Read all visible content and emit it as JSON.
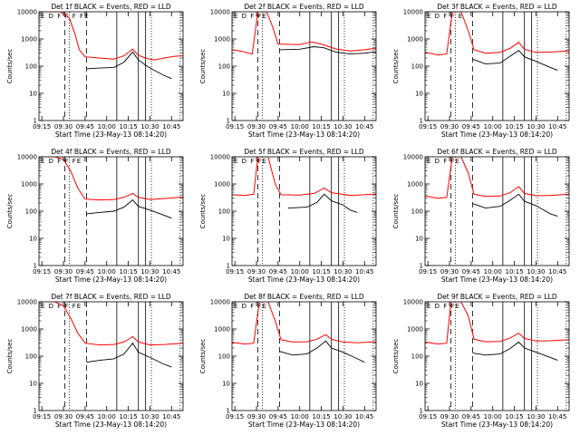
{
  "chart_data": {
    "type": "line",
    "layout": "3x3 grid",
    "xlabel": "Start Time (23-May-13 08:14:20)",
    "ylabel": "Counts/sec",
    "x_ticks": [
      "09:15",
      "09:30",
      "09:45",
      "10:00",
      "10:15",
      "10:30",
      "10:45"
    ],
    "x_range": [
      "09:13",
      "10:53"
    ],
    "y_scale": "log",
    "y_ticks": [
      "1",
      "10",
      "100",
      "1000",
      "10000"
    ],
    "ylim": [
      1,
      10000
    ],
    "grid": false,
    "colors": {
      "events": "#000000",
      "lld": "#ff0000"
    },
    "markers": [
      {
        "label": "D",
        "time": "09:31",
        "style": "dashed"
      },
      {
        "label": "",
        "time": "09:34",
        "style": "dotted"
      },
      {
        "label": "",
        "time": "09:46",
        "style": "dashed"
      },
      {
        "label": "",
        "time": "10:07",
        "style": "solid"
      },
      {
        "label": "",
        "time": "10:22",
        "style": "solid"
      },
      {
        "label": "",
        "time": "10:27",
        "style": "solid"
      },
      {
        "label": "",
        "time": "10:31",
        "style": "dotted"
      },
      {
        "label": "",
        "time": "10:51",
        "style": "dotted"
      }
    ],
    "panels": [
      {
        "title": "Det 1f BLACK = Events, RED = LLD",
        "flags": "E D F F F FE",
        "lld": [
          [
            "09:13",
            10000
          ],
          [
            "09:22",
            10000
          ],
          [
            "09:28",
            10000
          ],
          [
            "09:34",
            6000
          ],
          [
            "09:38",
            1500
          ],
          [
            "09:41",
            400
          ],
          [
            "09:45",
            220
          ],
          [
            "09:55",
            200
          ],
          [
            "10:05",
            180
          ],
          [
            "10:12",
            240
          ],
          [
            "10:18",
            430
          ],
          [
            "10:22",
            250
          ],
          [
            "10:28",
            190
          ],
          [
            "10:33",
            170
          ],
          [
            "10:40",
            200
          ],
          [
            "10:47",
            230
          ],
          [
            "10:53",
            240
          ]
        ],
        "events": [
          [
            "09:46",
            80
          ],
          [
            "09:55",
            85
          ],
          [
            "10:05",
            90
          ],
          [
            "10:12",
            140
          ],
          [
            "10:18",
            330
          ],
          [
            "10:22",
            170
          ],
          [
            "10:28",
            100
          ],
          [
            "10:33",
            70
          ],
          [
            "10:40",
            45
          ],
          [
            "10:45",
            35
          ]
        ]
      },
      {
        "title": "Det 2f BLACK = Events, RED = LLD",
        "flags": "E D F FE",
        "lld": [
          [
            "09:13",
            400
          ],
          [
            "09:20",
            350
          ],
          [
            "09:27",
            280
          ],
          [
            "09:31",
            10000
          ],
          [
            "09:37",
            10000
          ],
          [
            "09:41",
            3000
          ],
          [
            "09:45",
            650
          ],
          [
            "10:00",
            620
          ],
          [
            "10:08",
            780
          ],
          [
            "10:15",
            650
          ],
          [
            "10:25",
            430
          ],
          [
            "10:35",
            360
          ],
          [
            "10:45",
            400
          ],
          [
            "10:53",
            460
          ]
        ],
        "events": [
          [
            "09:46",
            400
          ],
          [
            "10:00",
            420
          ],
          [
            "10:10",
            520
          ],
          [
            "10:17",
            470
          ],
          [
            "10:25",
            330
          ],
          [
            "10:35",
            280
          ],
          [
            "10:45",
            300
          ],
          [
            "10:53",
            340
          ]
        ]
      },
      {
        "title": "Det 3f BLACK = Events, RED = LLD",
        "flags": "E D F F E",
        "lld": [
          [
            "09:13",
            320
          ],
          [
            "09:22",
            260
          ],
          [
            "09:28",
            280
          ],
          [
            "09:32",
            10000
          ],
          [
            "09:38",
            10000
          ],
          [
            "09:43",
            2000
          ],
          [
            "09:47",
            400
          ],
          [
            "09:55",
            300
          ],
          [
            "10:05",
            320
          ],
          [
            "10:12",
            450
          ],
          [
            "10:18",
            750
          ],
          [
            "10:22",
            420
          ],
          [
            "10:30",
            320
          ],
          [
            "10:40",
            330
          ],
          [
            "10:53",
            360
          ]
        ],
        "events": [
          [
            "09:46",
            180
          ],
          [
            "09:55",
            120
          ],
          [
            "10:05",
            130
          ],
          [
            "10:12",
            230
          ],
          [
            "10:18",
            380
          ],
          [
            "10:22",
            220
          ],
          [
            "10:30",
            150
          ],
          [
            "10:40",
            90
          ],
          [
            "10:45",
            70
          ]
        ]
      },
      {
        "title": "Det 4f BLACK = Events, RED = LLD",
        "flags": "E D F F FE",
        "lld": [
          [
            "09:13",
            10000
          ],
          [
            "09:24",
            10000
          ],
          [
            "09:30",
            8000
          ],
          [
            "09:35",
            3000
          ],
          [
            "09:40",
            700
          ],
          [
            "09:45",
            280
          ],
          [
            "09:55",
            260
          ],
          [
            "10:05",
            270
          ],
          [
            "10:12",
            320
          ],
          [
            "10:18",
            450
          ],
          [
            "10:22",
            320
          ],
          [
            "10:30",
            270
          ],
          [
            "10:40",
            290
          ],
          [
            "10:53",
            330
          ]
        ],
        "events": [
          [
            "09:46",
            80
          ],
          [
            "09:55",
            90
          ],
          [
            "10:05",
            100
          ],
          [
            "10:12",
            140
          ],
          [
            "10:18",
            260
          ],
          [
            "10:22",
            150
          ],
          [
            "10:30",
            110
          ],
          [
            "10:40",
            70
          ],
          [
            "10:45",
            55
          ]
        ]
      },
      {
        "title": "Det 5f BLACK = Events, RED = LLD",
        "flags": "E D F FE",
        "lld": [
          [
            "09:13",
            400
          ],
          [
            "09:22",
            380
          ],
          [
            "09:28",
            420
          ],
          [
            "09:31",
            10000
          ],
          [
            "09:38",
            10000
          ],
          [
            "09:43",
            1000
          ],
          [
            "09:47",
            400
          ],
          [
            "10:00",
            390
          ],
          [
            "10:10",
            450
          ],
          [
            "10:17",
            700
          ],
          [
            "10:22",
            480
          ],
          [
            "10:35",
            380
          ],
          [
            "10:45",
            400
          ],
          [
            "10:53",
            430
          ]
        ],
        "events": [
          [
            "09:52",
            130
          ],
          [
            "10:05",
            140
          ],
          [
            "10:12",
            210
          ],
          [
            "10:17",
            420
          ],
          [
            "10:22",
            240
          ],
          [
            "10:30",
            170
          ],
          [
            "10:35",
            110
          ],
          [
            "10:40",
            90
          ]
        ]
      },
      {
        "title": "Det 6f BLACK = Events, RED = LLD",
        "flags": "E D F FE",
        "lld": [
          [
            "09:13",
            360
          ],
          [
            "09:22",
            300
          ],
          [
            "09:28",
            320
          ],
          [
            "09:32",
            10000
          ],
          [
            "09:38",
            10000
          ],
          [
            "09:43",
            2500
          ],
          [
            "09:47",
            420
          ],
          [
            "09:55",
            350
          ],
          [
            "10:05",
            360
          ],
          [
            "10:12",
            480
          ],
          [
            "10:18",
            800
          ],
          [
            "10:22",
            450
          ],
          [
            "10:30",
            370
          ],
          [
            "10:40",
            380
          ],
          [
            "10:53",
            420
          ]
        ],
        "events": [
          [
            "09:46",
            190
          ],
          [
            "09:55",
            130
          ],
          [
            "10:05",
            150
          ],
          [
            "10:12",
            250
          ],
          [
            "10:18",
            420
          ],
          [
            "10:22",
            230
          ],
          [
            "10:30",
            160
          ],
          [
            "10:40",
            80
          ],
          [
            "10:45",
            65
          ]
        ]
      },
      {
        "title": "Det 7f BLACK = Events, RED = LLD",
        "flags": "E D F F FE",
        "lld": [
          [
            "09:13",
            10000
          ],
          [
            "09:24",
            10000
          ],
          [
            "09:30",
            7000
          ],
          [
            "09:35",
            2500
          ],
          [
            "09:40",
            700
          ],
          [
            "09:45",
            300
          ],
          [
            "09:55",
            260
          ],
          [
            "10:05",
            270
          ],
          [
            "10:12",
            330
          ],
          [
            "10:18",
            520
          ],
          [
            "10:22",
            330
          ],
          [
            "10:30",
            260
          ],
          [
            "10:40",
            270
          ],
          [
            "10:53",
            300
          ]
        ],
        "events": [
          [
            "09:46",
            60
          ],
          [
            "09:55",
            70
          ],
          [
            "10:05",
            80
          ],
          [
            "10:12",
            120
          ],
          [
            "10:18",
            300
          ],
          [
            "10:22",
            140
          ],
          [
            "10:30",
            90
          ],
          [
            "10:40",
            50
          ],
          [
            "10:45",
            40
          ]
        ]
      },
      {
        "title": "Det 8f BLACK = Events, RED = LLD",
        "flags": "E D F FE",
        "lld": [
          [
            "09:13",
            320
          ],
          [
            "09:22",
            280
          ],
          [
            "09:28",
            300
          ],
          [
            "09:32",
            10000
          ],
          [
            "09:38",
            10000
          ],
          [
            "09:43",
            2000
          ],
          [
            "09:47",
            400
          ],
          [
            "09:55",
            330
          ],
          [
            "10:05",
            340
          ],
          [
            "10:12",
            420
          ],
          [
            "10:18",
            620
          ],
          [
            "10:22",
            420
          ],
          [
            "10:30",
            330
          ],
          [
            "10:40",
            310
          ],
          [
            "10:53",
            340
          ]
        ],
        "events": [
          [
            "09:46",
            150
          ],
          [
            "09:55",
            110
          ],
          [
            "10:05",
            120
          ],
          [
            "10:12",
            200
          ],
          [
            "10:18",
            360
          ],
          [
            "10:22",
            200
          ],
          [
            "10:30",
            140
          ],
          [
            "10:40",
            80
          ],
          [
            "10:45",
            60
          ]
        ]
      },
      {
        "title": "Det 9f BLACK = Events, RED = LLD",
        "flags": "E D F FE",
        "lld": [
          [
            "09:13",
            330
          ],
          [
            "09:22",
            280
          ],
          [
            "09:28",
            300
          ],
          [
            "09:31",
            10000
          ],
          [
            "09:38",
            10000
          ],
          [
            "09:43",
            3000
          ],
          [
            "09:47",
            420
          ],
          [
            "09:55",
            340
          ],
          [
            "10:05",
            350
          ],
          [
            "10:12",
            460
          ],
          [
            "10:18",
            700
          ],
          [
            "10:22",
            450
          ],
          [
            "10:30",
            360
          ],
          [
            "10:40",
            370
          ],
          [
            "10:53",
            400
          ]
        ],
        "events": [
          [
            "09:46",
            130
          ],
          [
            "09:55",
            110
          ],
          [
            "10:05",
            120
          ],
          [
            "10:12",
            190
          ],
          [
            "10:18",
            330
          ],
          [
            "10:22",
            200
          ],
          [
            "10:30",
            140
          ],
          [
            "10:40",
            90
          ],
          [
            "10:45",
            70
          ]
        ]
      }
    ]
  }
}
